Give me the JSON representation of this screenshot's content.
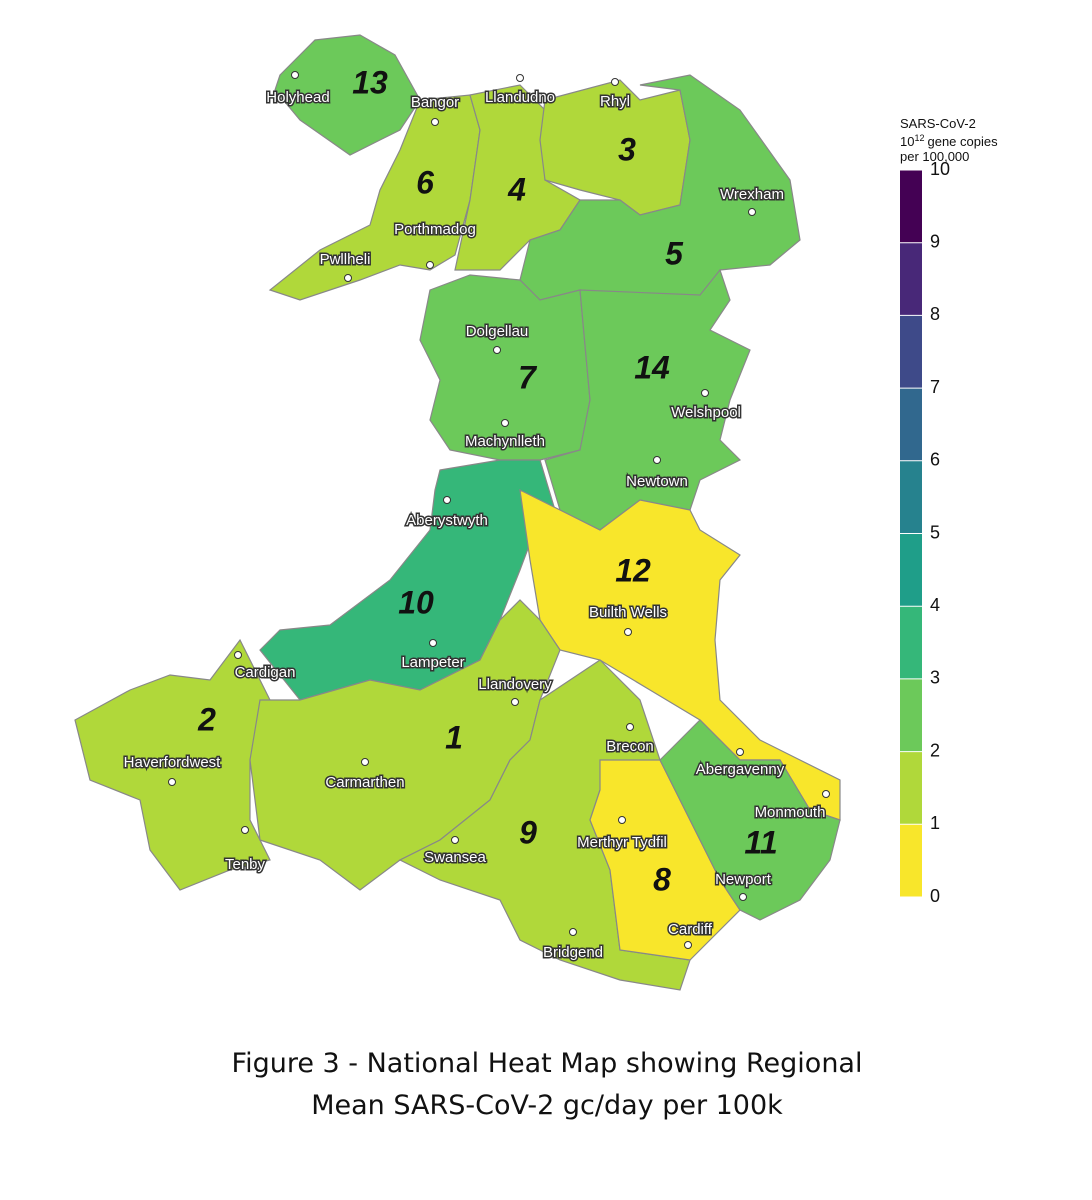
{
  "regions": [
    {
      "label": "13",
      "color": "#6cc95a"
    },
    {
      "label": "6",
      "color": "#b0d83a"
    },
    {
      "label": "4",
      "color": "#b0d83a"
    },
    {
      "label": "3",
      "color": "#b0d83a"
    },
    {
      "label": "5",
      "color": "#6cc95a"
    },
    {
      "label": "7",
      "color": "#6cc95a"
    },
    {
      "label": "14",
      "color": "#6cc95a"
    },
    {
      "label": "10",
      "color": "#35b779"
    },
    {
      "label": "12",
      "color": "#f8e62b"
    },
    {
      "label": "2",
      "color": "#b0d83a"
    },
    {
      "label": "1",
      "color": "#b0d83a"
    },
    {
      "label": "9",
      "color": "#b0d83a"
    },
    {
      "label": "8",
      "color": "#f8e62b"
    },
    {
      "label": "11",
      "color": "#6cc95a"
    }
  ],
  "towns": [
    "Holyhead",
    "Bangor",
    "Llandudno",
    "Rhyl",
    "Wrexham",
    "Porthmadog",
    "Pwllheli",
    "Dolgellau",
    "Machynlleth",
    "Welshpool",
    "Newtown",
    "Aberystwyth",
    "Builth Wells",
    "Cardigan",
    "Lampeter",
    "Llandovery",
    "Brecon",
    "Abergavenny",
    "Haverfordwest",
    "Carmarthen",
    "Monmouth",
    "Merthyr Tydfil",
    "Newport",
    "Tenby",
    "Swansea",
    "Bridgend",
    "Cardiff"
  ],
  "legend": {
    "title": "SARS-CoV-2",
    "unit_base": "10",
    "unit_exponent": "12",
    "unit_rest": "gene copies",
    "per": "per 100,000",
    "ticks": [
      0,
      1,
      2,
      3,
      4,
      5,
      6,
      7,
      8,
      9,
      10
    ],
    "colors": [
      "#f8e62b",
      "#b0d83a",
      "#6cc95a",
      "#35b779",
      "#1f9e89",
      "#26828e",
      "#31688e",
      "#3e4a89",
      "#482878",
      "#440154"
    ]
  },
  "caption": [
    "Figure 3 - National Heat Map showing Regional",
    "Mean SARS-CoV-2 gc/day per 100k"
  ]
}
